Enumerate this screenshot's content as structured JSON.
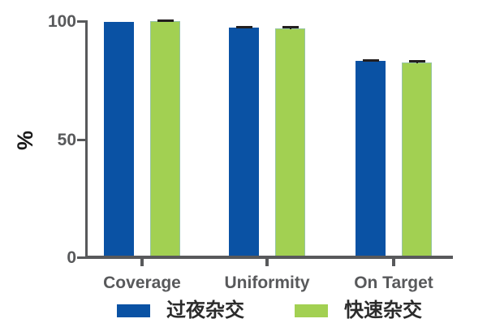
{
  "chart_data": {
    "type": "bar",
    "title": "",
    "ylabel": "%",
    "xlabel": "",
    "categories": [
      "Coverage",
      "Uniformity",
      "On Target"
    ],
    "series": [
      {
        "name": "过夜杂交",
        "color": "#0a52a4",
        "values": [
          99.8,
          97.3,
          83.2
        ],
        "errors": [
          0,
          0.7,
          0.8
        ]
      },
      {
        "name": "快速杂交",
        "color": "#a2d052",
        "values": [
          100,
          96.8,
          82.5
        ],
        "errors": [
          0.8,
          1.0,
          1.0
        ]
      }
    ],
    "ylim": [
      0,
      100
    ],
    "yticks": [
      0,
      50,
      100
    ],
    "grid": false,
    "legend_position": "bottom",
    "colors": {
      "axis": "#58595b",
      "tick_label": "#58595b",
      "error_bar": "#231f20",
      "ylabel_text": "#1a1a1a",
      "legend_text": "#2b2b2b",
      "background": "#ffffff"
    }
  }
}
